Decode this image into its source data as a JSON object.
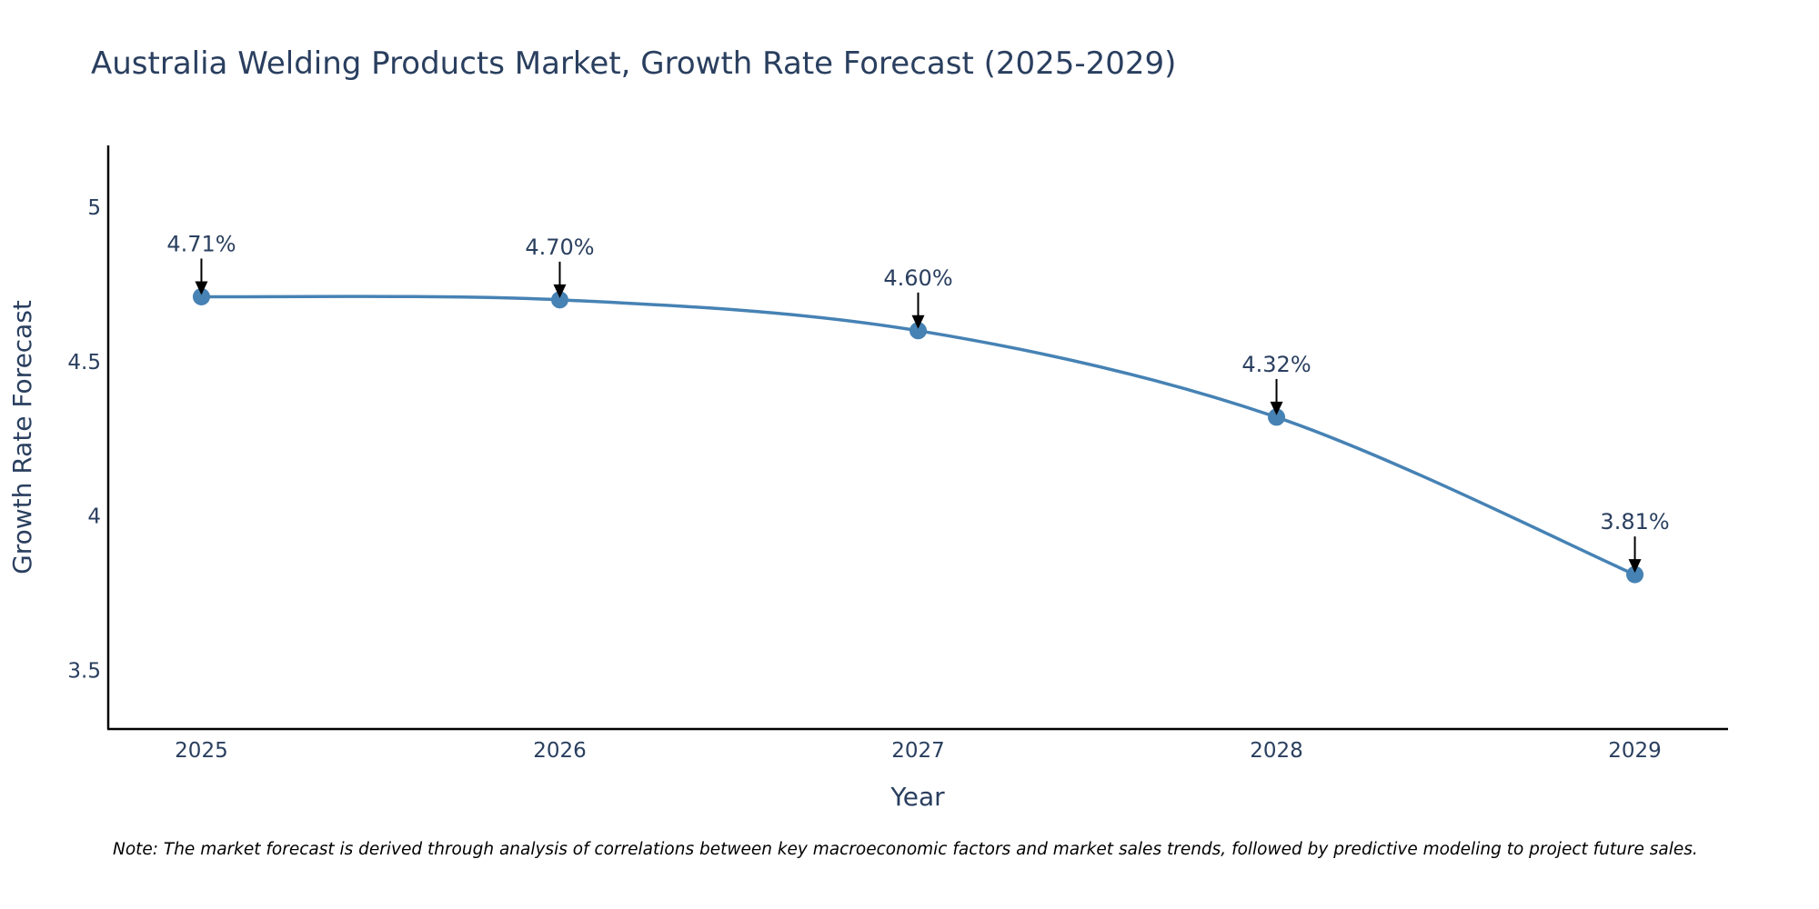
{
  "chart_data": {
    "type": "line",
    "title": "Australia Welding Products Market, Growth Rate Forecast (2025-2029)",
    "xlabel": "Year",
    "ylabel": "Growth Rate Forecast",
    "categories": [
      "2025",
      "2026",
      "2027",
      "2028",
      "2029"
    ],
    "x": [
      2025,
      2026,
      2027,
      2028,
      2029
    ],
    "values": [
      4.71,
      4.7,
      4.6,
      4.32,
      3.81
    ],
    "data_labels": [
      "4.71%",
      "4.70%",
      "4.60%",
      "4.32%",
      "3.81%"
    ],
    "yticks": [
      3.5,
      4,
      4.5,
      5
    ],
    "ytick_labels": [
      "3.5",
      "4",
      "4.5",
      "5"
    ],
    "ylim": [
      3.31,
      5.2
    ],
    "xlim": [
      2024.74,
      2029.26
    ],
    "grid": false,
    "line_shape": "spline",
    "colors": {
      "series": "#4682b4",
      "arrow": "#000000",
      "axis": "#000000"
    },
    "annotation_style": "arrow-labels-above-points"
  },
  "note": "Note: The market forecast is derived through analysis of correlations between key macroeconomic factors and market sales trends, followed by predictive modeling to project future sales."
}
